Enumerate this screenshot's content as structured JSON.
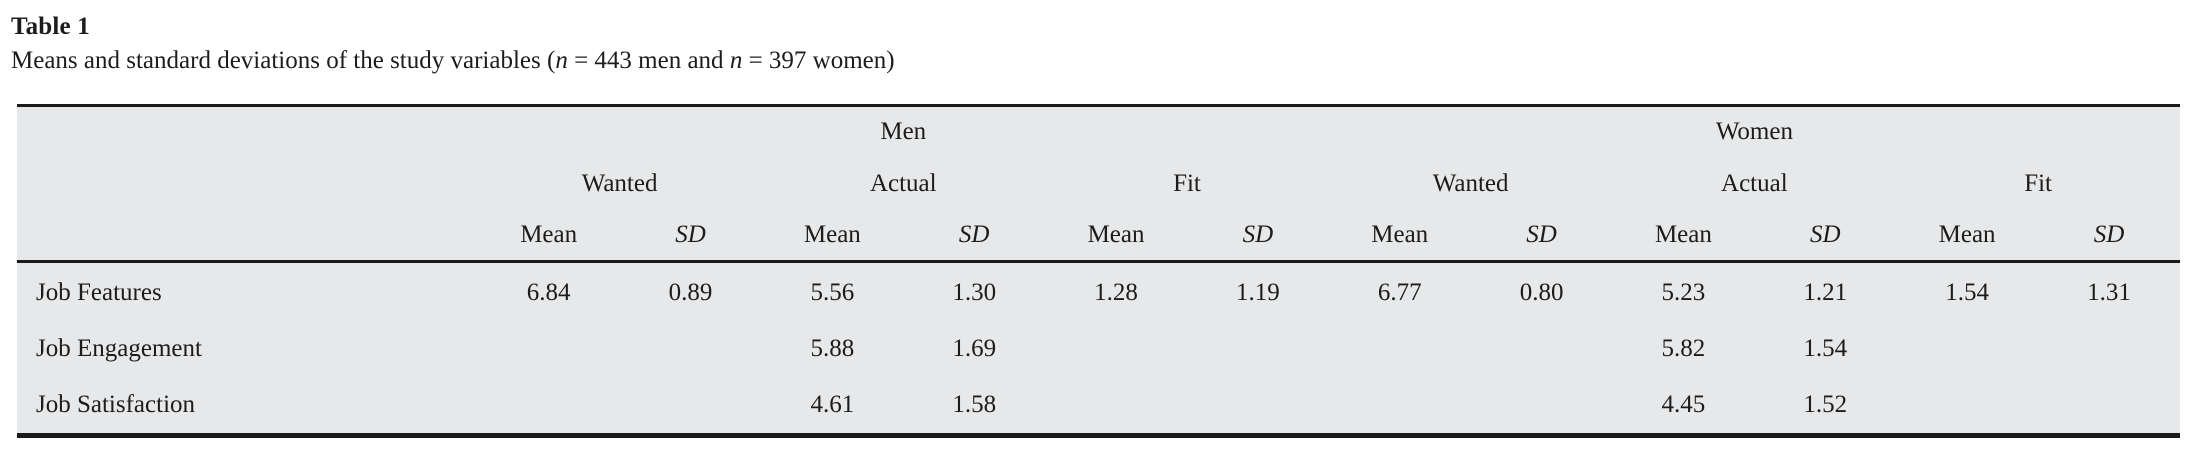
{
  "title": "Table 1",
  "caption": {
    "parts": [
      "Means and standard deviations of the study variables (",
      "n",
      " = 443 men and ",
      "n",
      " = 397 women)"
    ]
  },
  "table": {
    "header": {
      "gender_groups": [
        {
          "label": "Men"
        },
        {
          "label": "Women"
        }
      ],
      "subgroups": [
        "Wanted",
        "Actual",
        "Fit",
        "Wanted",
        "Actual",
        "Fit"
      ],
      "stat_labels": [
        "Mean",
        "SD",
        "Mean",
        "SD",
        "Mean",
        "SD",
        "Mean",
        "SD",
        "Mean",
        "SD",
        "Mean",
        "SD"
      ]
    },
    "rows": [
      {
        "label": "Job Features",
        "values": [
          "6.84",
          "0.89",
          "5.56",
          "1.30",
          "1.28",
          "1.19",
          "6.77",
          "0.80",
          "5.23",
          "1.21",
          "1.54",
          "1.31"
        ]
      },
      {
        "label": "Job Engagement",
        "values": [
          "",
          "",
          "5.88",
          "1.69",
          "",
          "",
          "",
          "",
          "5.82",
          "1.54",
          "",
          ""
        ]
      },
      {
        "label": "Job Satisfaction",
        "values": [
          "",
          "",
          "4.61",
          "1.58",
          "",
          "",
          "",
          "",
          "4.45",
          "1.52",
          "",
          ""
        ]
      }
    ]
  },
  "colors": {
    "table_background": "#e7e8e9",
    "rule": "#1a1a1a",
    "text": "#1c1c1c"
  }
}
